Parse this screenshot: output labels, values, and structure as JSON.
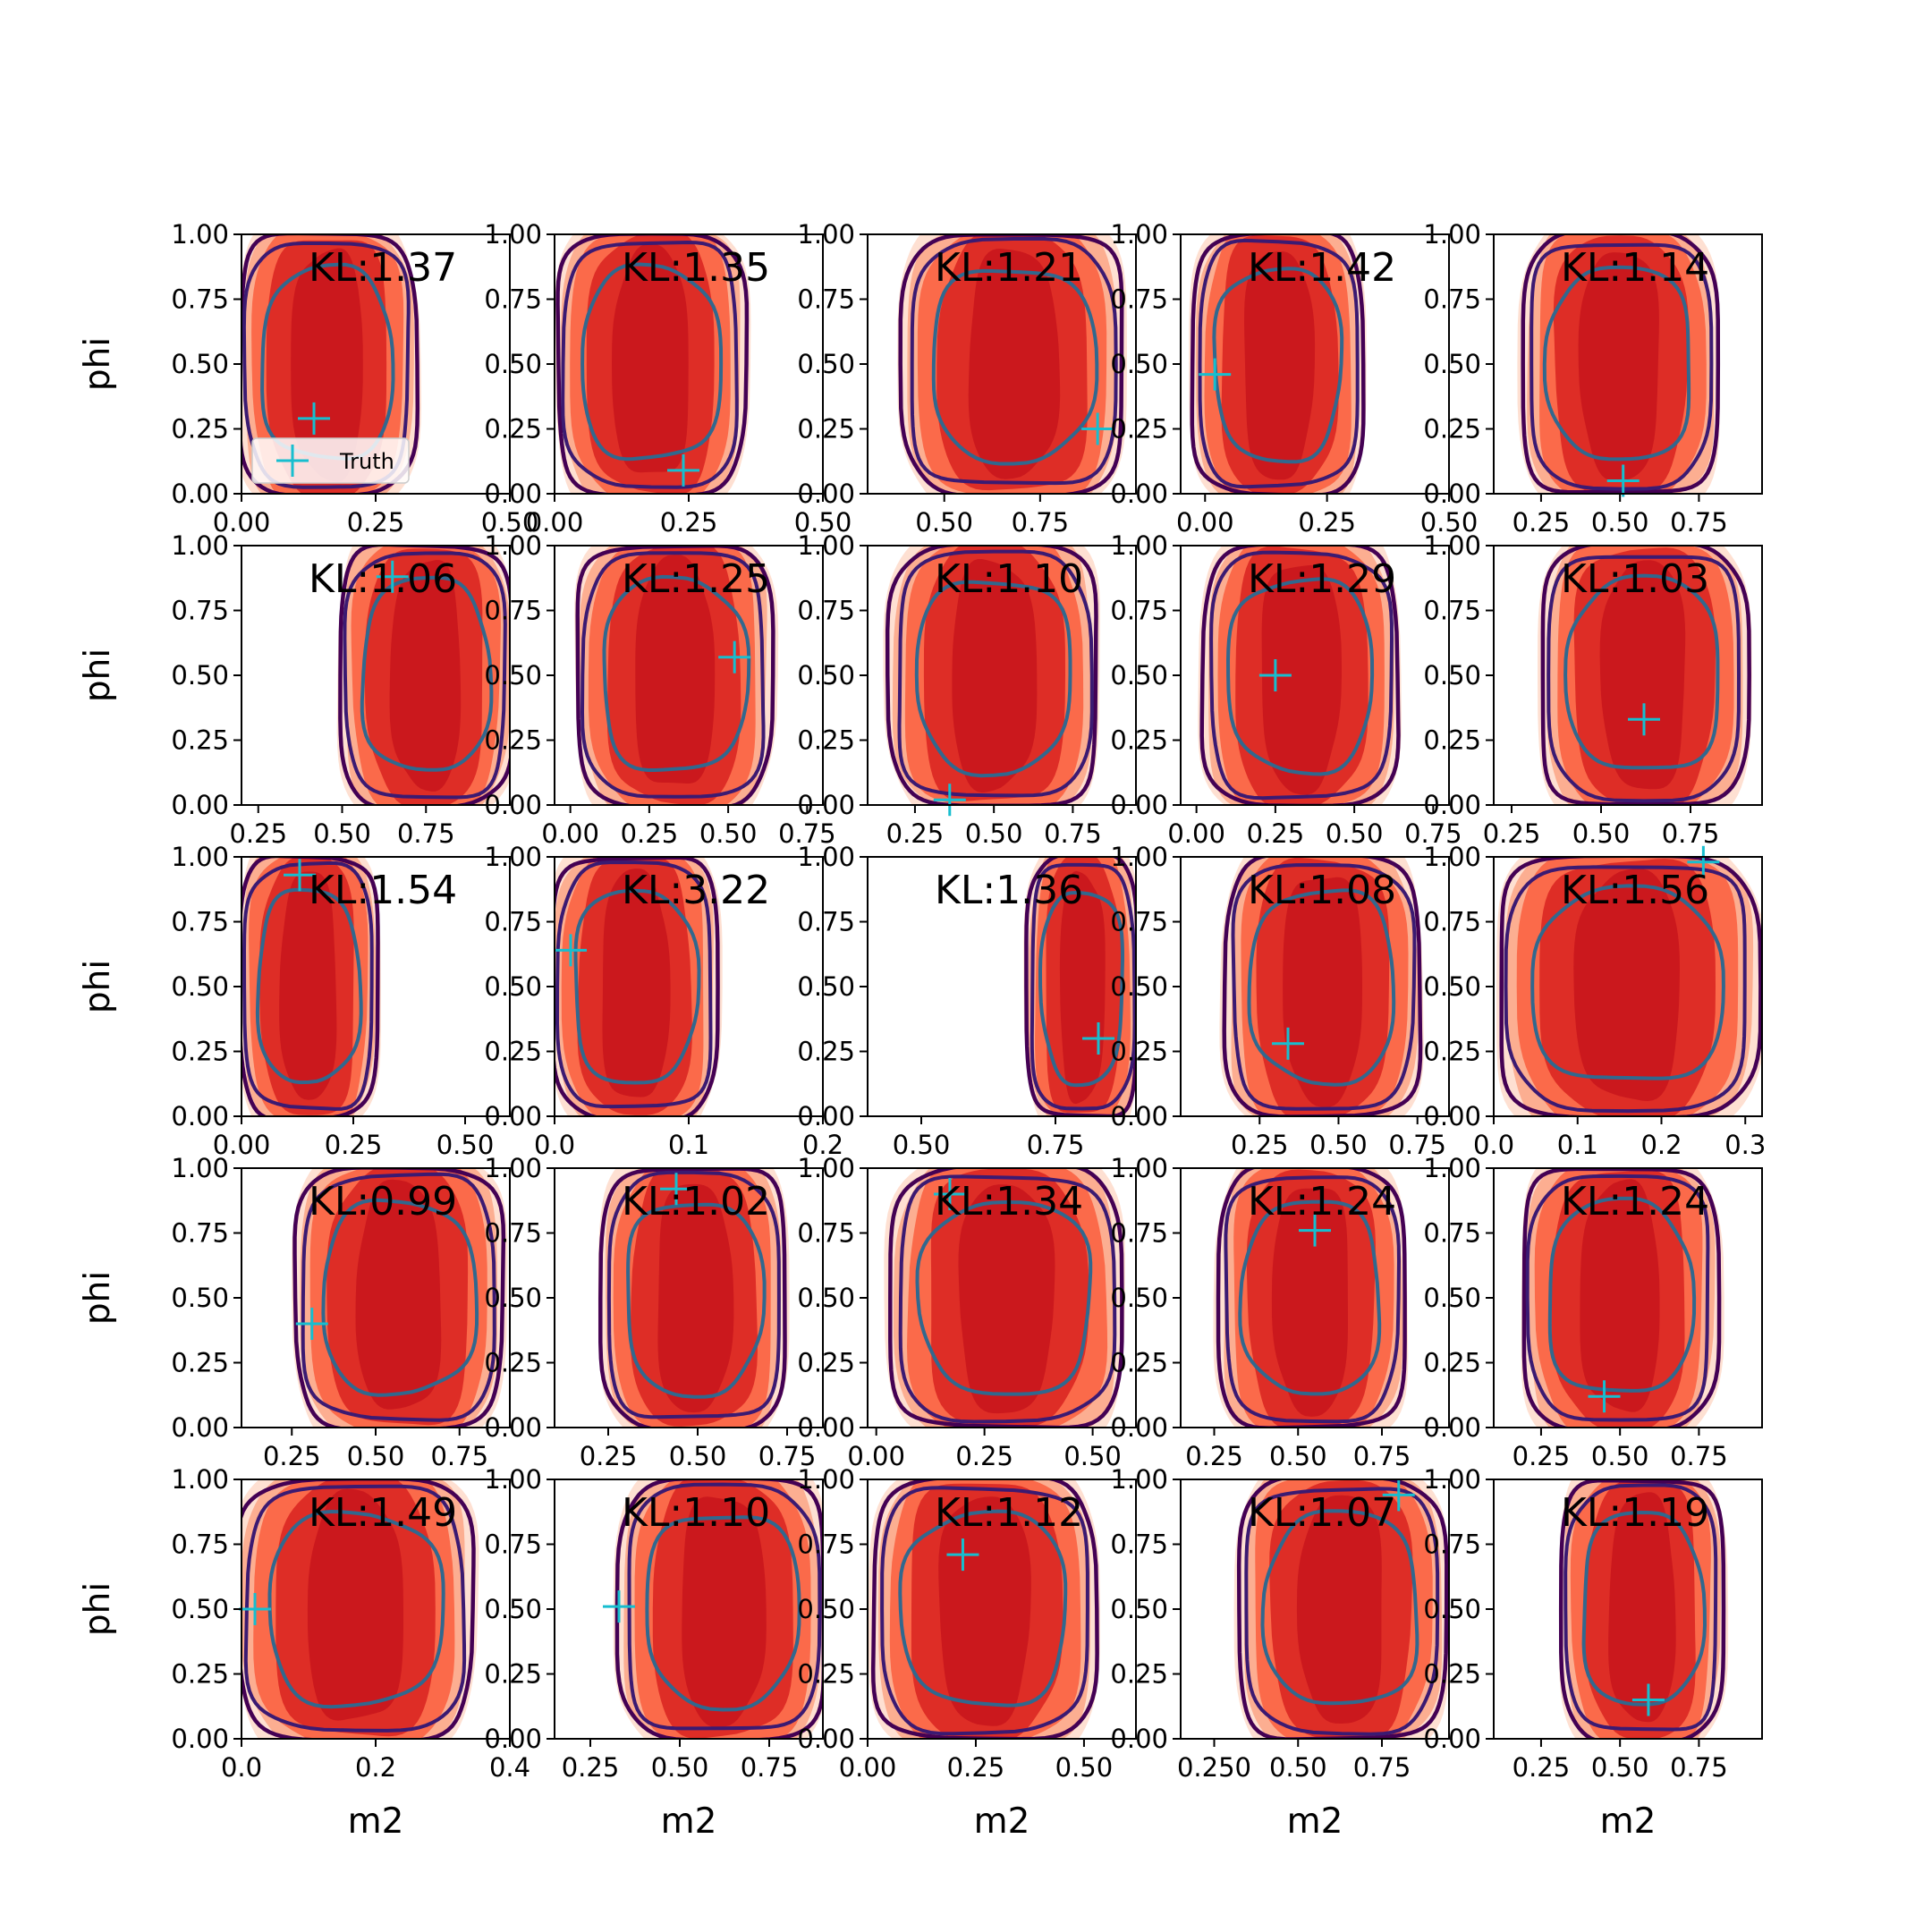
{
  "chart_data": {
    "type": "grid-of-density-contour-plots",
    "rows": 5,
    "cols": 5,
    "xlabel": "m2",
    "ylabel": "phi",
    "y_ticks": [
      "0.00",
      "0.25",
      "0.50",
      "0.75",
      "1.00"
    ],
    "ylim": [
      0,
      1
    ],
    "legend": {
      "label": "Truth",
      "placement": "lower-left",
      "panel": 0
    },
    "colors": {
      "fill_outer": "#fee0d2",
      "fill_mid": "#fcae91",
      "fill_inner": "#fb6a4a",
      "fill_core": "#de2d26",
      "fill_peak": "#cb181d",
      "contour_outer": "#440154",
      "contour_mid": "#3b1a72",
      "contour_inner": "#31688e",
      "truth_marker": "#17becf"
    },
    "panels": [
      {
        "kl": "KL:1.37",
        "xlim": [
          0,
          0.5
        ],
        "x_ticks": [
          0,
          0.25,
          0.5
        ],
        "x_tick_labels": [
          "0.00",
          "0.25",
          "0.50"
        ],
        "truth": [
          0.135,
          0.29
        ],
        "cx": 0.16,
        "hw": 0.16
      },
      {
        "kl": "KL:1.35",
        "xlim": [
          0,
          0.5
        ],
        "x_ticks": [
          0,
          0.25,
          0.5
        ],
        "x_tick_labels": [
          "0.00",
          "0.25",
          "0.50"
        ],
        "truth": [
          0.24,
          0.09
        ],
        "cx": 0.18,
        "hw": 0.17
      },
      {
        "kl": "KL:1.21",
        "xlim": [
          0.3,
          1.0
        ],
        "x_ticks": [
          0.5,
          0.75
        ],
        "x_tick_labels": [
          "0.50",
          "0.75"
        ],
        "truth": [
          0.9,
          0.25
        ],
        "cx": 0.68,
        "hw": 0.28
      },
      {
        "kl": "KL:1.42",
        "xlim": [
          -0.05,
          0.5
        ],
        "x_ticks": [
          0,
          0.25,
          0.5
        ],
        "x_tick_labels": [
          "0.00",
          "0.25",
          "0.50"
        ],
        "truth": [
          0.02,
          0.46
        ],
        "cx": 0.15,
        "hw": 0.17
      },
      {
        "kl": "KL:1.14",
        "xlim": [
          0.1,
          0.95
        ],
        "x_ticks": [
          0.25,
          0.5,
          0.75
        ],
        "x_tick_labels": [
          "0.25",
          "0.50",
          "0.75"
        ],
        "truth": [
          0.51,
          0.05
        ],
        "cx": 0.5,
        "hw": 0.3
      },
      {
        "kl": "KL:1.06",
        "xlim": [
          0.2,
          1.0
        ],
        "x_ticks": [
          0.25,
          0.5,
          0.75
        ],
        "x_tick_labels": [
          "0.25",
          "0.50",
          "0.75"
        ],
        "truth": [
          0.65,
          0.88
        ],
        "cx": 0.75,
        "hw": 0.25
      },
      {
        "kl": "KL:1.25",
        "xlim": [
          -0.05,
          0.8
        ],
        "x_ticks": [
          0,
          0.25,
          0.5,
          0.75
        ],
        "x_tick_labels": [
          "0.00",
          "0.25",
          "0.50",
          "0.75"
        ],
        "truth": [
          0.52,
          0.57
        ],
        "cx": 0.33,
        "hw": 0.3
      },
      {
        "kl": "KL:1.10",
        "xlim": [
          0.1,
          0.95
        ],
        "x_ticks": [
          0.25,
          0.5,
          0.75
        ],
        "x_tick_labels": [
          "0.25",
          "0.50",
          "0.75"
        ],
        "truth": [
          0.36,
          0.02
        ],
        "cx": 0.5,
        "hw": 0.32
      },
      {
        "kl": "KL:1.29",
        "xlim": [
          -0.05,
          0.8
        ],
        "x_ticks": [
          0,
          0.25,
          0.5,
          0.75
        ],
        "x_tick_labels": [
          "0.00",
          "0.25",
          "0.50",
          "0.75"
        ],
        "truth": [
          0.25,
          0.5
        ],
        "cx": 0.33,
        "hw": 0.3
      },
      {
        "kl": "KL:1.03",
        "xlim": [
          0.2,
          0.95
        ],
        "x_ticks": [
          0.25,
          0.5,
          0.75
        ],
        "x_tick_labels": [
          "0.25",
          "0.50",
          "0.75"
        ],
        "truth": [
          0.62,
          0.33
        ],
        "cx": 0.62,
        "hw": 0.28
      },
      {
        "kl": "KL:1.54",
        "xlim": [
          0,
          0.6
        ],
        "x_ticks": [
          0,
          0.25,
          0.5
        ],
        "x_tick_labels": [
          "0.00",
          "0.25",
          "0.50"
        ],
        "truth": [
          0.13,
          0.93
        ],
        "cx": 0.15,
        "hw": 0.15
      },
      {
        "kl": "KL:3.22",
        "xlim": [
          0,
          0.2
        ],
        "x_ticks": [
          0,
          0.1,
          0.2
        ],
        "x_tick_labels": [
          "0.0",
          "0.1",
          "0.2"
        ],
        "truth": [
          0.012,
          0.64
        ],
        "cx": 0.06,
        "hw": 0.06
      },
      {
        "kl": "KL:1.36",
        "xlim": [
          0.4,
          0.9
        ],
        "x_ticks": [
          0.5,
          0.75
        ],
        "x_tick_labels": [
          "0.50",
          "0.75"
        ],
        "truth": [
          0.83,
          0.3
        ],
        "cx": 0.8,
        "hw": 0.1
      },
      {
        "kl": "KL:1.08",
        "xlim": [
          0,
          0.85
        ],
        "x_ticks": [
          0.25,
          0.5,
          0.75
        ],
        "x_tick_labels": [
          "0.25",
          "0.50",
          "0.75"
        ],
        "truth": [
          0.34,
          0.28
        ],
        "cx": 0.45,
        "hw": 0.3
      },
      {
        "kl": "KL:1.56",
        "xlim": [
          0,
          0.32
        ],
        "x_ticks": [
          0,
          0.1,
          0.2,
          0.3
        ],
        "x_tick_labels": [
          "0.0",
          "0.1",
          "0.2",
          "0.3"
        ],
        "truth": [
          0.25,
          0.98
        ],
        "cx": 0.16,
        "hw": 0.15
      },
      {
        "kl": "KL:0.99",
        "xlim": [
          0.1,
          0.9
        ],
        "x_ticks": [
          0.25,
          0.5,
          0.75
        ],
        "x_tick_labels": [
          "0.25",
          "0.50",
          "0.75"
        ],
        "truth": [
          0.31,
          0.4
        ],
        "cx": 0.57,
        "hw": 0.3
      },
      {
        "kl": "KL:1.02",
        "xlim": [
          0.1,
          0.85
        ],
        "x_ticks": [
          0.25,
          0.5,
          0.75
        ],
        "x_tick_labels": [
          "0.25",
          "0.50",
          "0.75"
        ],
        "truth": [
          0.44,
          0.92
        ],
        "cx": 0.49,
        "hw": 0.25
      },
      {
        "kl": "KL:1.34",
        "xlim": [
          -0.02,
          0.6
        ],
        "x_ticks": [
          0,
          0.25,
          0.5
        ],
        "x_tick_labels": [
          "0.00",
          "0.25",
          "0.50"
        ],
        "truth": [
          0.17,
          0.9
        ],
        "cx": 0.3,
        "hw": 0.26
      },
      {
        "kl": "KL:1.24",
        "xlim": [
          0.15,
          0.95
        ],
        "x_ticks": [
          0.25,
          0.5,
          0.75
        ],
        "x_tick_labels": [
          "0.25",
          "0.50",
          "0.75"
        ],
        "truth": [
          0.55,
          0.76
        ],
        "cx": 0.54,
        "hw": 0.27
      },
      {
        "kl": "KL:1.24",
        "xlim": [
          0.1,
          0.95
        ],
        "x_ticks": [
          0.25,
          0.5,
          0.75
        ],
        "x_tick_labels": [
          "0.25",
          "0.50",
          "0.75"
        ],
        "truth": [
          0.45,
          0.12
        ],
        "cx": 0.5,
        "hw": 0.3
      },
      {
        "kl": "KL:1.49",
        "xlim": [
          0,
          0.4
        ],
        "x_ticks": [
          0,
          0.2,
          0.4
        ],
        "x_tick_labels": [
          "0.0",
          "0.2",
          "0.4"
        ],
        "truth": [
          0.02,
          0.5
        ],
        "cx": 0.17,
        "hw": 0.17
      },
      {
        "kl": "KL:1.10",
        "xlim": [
          0.15,
          0.9
        ],
        "x_ticks": [
          0.25,
          0.5,
          0.75
        ],
        "x_tick_labels": [
          "0.25",
          "0.50",
          "0.75"
        ],
        "truth": [
          0.33,
          0.51
        ],
        "cx": 0.62,
        "hw": 0.28
      },
      {
        "kl": "KL:1.12",
        "xlim": [
          0,
          0.62
        ],
        "x_ticks": [
          0,
          0.25,
          0.5
        ],
        "x_tick_labels": [
          "0.00",
          "0.25",
          "0.50"
        ],
        "truth": [
          0.22,
          0.71
        ],
        "cx": 0.27,
        "hw": 0.25
      },
      {
        "kl": "KL:1.07",
        "xlim": [
          0.15,
          0.95
        ],
        "x_ticks": [
          0.25,
          0.5,
          0.75
        ],
        "x_tick_labels": [
          "0.250",
          "0.50",
          "0.75"
        ],
        "truth": [
          0.8,
          0.94
        ],
        "cx": 0.63,
        "hw": 0.3
      },
      {
        "kl": "KL:1.19",
        "xlim": [
          0.1,
          0.95
        ],
        "x_ticks": [
          0.25,
          0.5,
          0.75
        ],
        "x_tick_labels": [
          "0.25",
          "0.50",
          "0.75"
        ],
        "truth": [
          0.59,
          0.15
        ],
        "cx": 0.57,
        "hw": 0.25
      }
    ]
  }
}
